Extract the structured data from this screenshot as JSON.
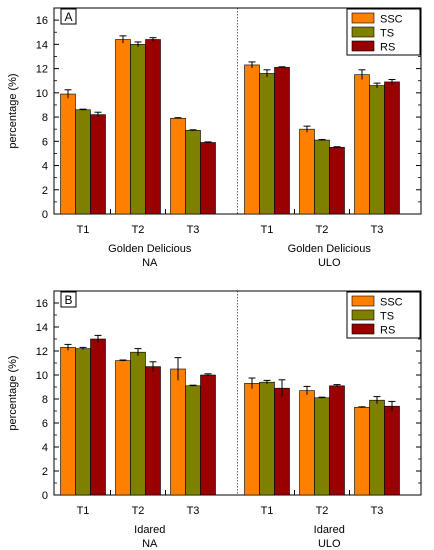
{
  "chart_data": [
    {
      "panel": "A",
      "type": "bar",
      "ylabel": "percentage (%)",
      "ylim": [
        0,
        17
      ],
      "yticks": [
        0,
        2,
        4,
        6,
        8,
        10,
        12,
        14,
        16
      ],
      "grid": false,
      "legend_position": "top-right",
      "categories": [
        "T1",
        "T2",
        "T3",
        "T1",
        "T2",
        "T3"
      ],
      "groups": [
        {
          "line1": "Golden Delicious",
          "line2": "NA"
        },
        {
          "line1": "Golden Delicious",
          "line2": "ULO"
        }
      ],
      "series": [
        {
          "name": "SSC",
          "color": "#FF8000",
          "values": [
            9.9,
            14.4,
            7.9,
            12.3,
            7.0,
            11.5
          ],
          "errors": [
            0.35,
            0.3,
            0.05,
            0.25,
            0.25,
            0.4
          ]
        },
        {
          "name": "TS",
          "color": "#808000",
          "values": [
            8.6,
            14.0,
            6.9,
            11.6,
            6.1,
            10.6
          ],
          "errors": [
            0.05,
            0.2,
            0.05,
            0.3,
            0.05,
            0.2
          ]
        },
        {
          "name": "RS",
          "color": "#990000",
          "values": [
            8.2,
            14.4,
            5.9,
            12.1,
            5.5,
            10.9
          ],
          "errors": [
            0.2,
            0.15,
            0.05,
            0.05,
            0.05,
            0.2
          ]
        }
      ]
    },
    {
      "panel": "B",
      "type": "bar",
      "ylabel": "percentage (%)",
      "ylim": [
        0,
        17
      ],
      "yticks": [
        0,
        2,
        4,
        6,
        8,
        10,
        12,
        14,
        16
      ],
      "grid": false,
      "legend_position": "top-right",
      "categories": [
        "T1",
        "T2",
        "T3",
        "T1",
        "T2",
        "T3"
      ],
      "groups": [
        {
          "line1": "Idared",
          "line2": "NA"
        },
        {
          "line1": "Idared",
          "line2": "ULO"
        }
      ],
      "series": [
        {
          "name": "SSC",
          "color": "#FF8000",
          "values": [
            12.3,
            11.2,
            10.5,
            9.3,
            8.7,
            7.3
          ],
          "errors": [
            0.25,
            0.05,
            0.95,
            0.45,
            0.35,
            0.05
          ]
        },
        {
          "name": "TS",
          "color": "#808000",
          "values": [
            12.2,
            11.9,
            9.1,
            9.4,
            8.1,
            7.9
          ],
          "errors": [
            0.1,
            0.3,
            0.05,
            0.15,
            0.05,
            0.3
          ]
        },
        {
          "name": "RS",
          "color": "#990000",
          "values": [
            13.0,
            10.7,
            10.0,
            8.9,
            9.1,
            7.4
          ],
          "errors": [
            0.3,
            0.4,
            0.1,
            0.7,
            0.1,
            0.4
          ]
        }
      ]
    }
  ]
}
